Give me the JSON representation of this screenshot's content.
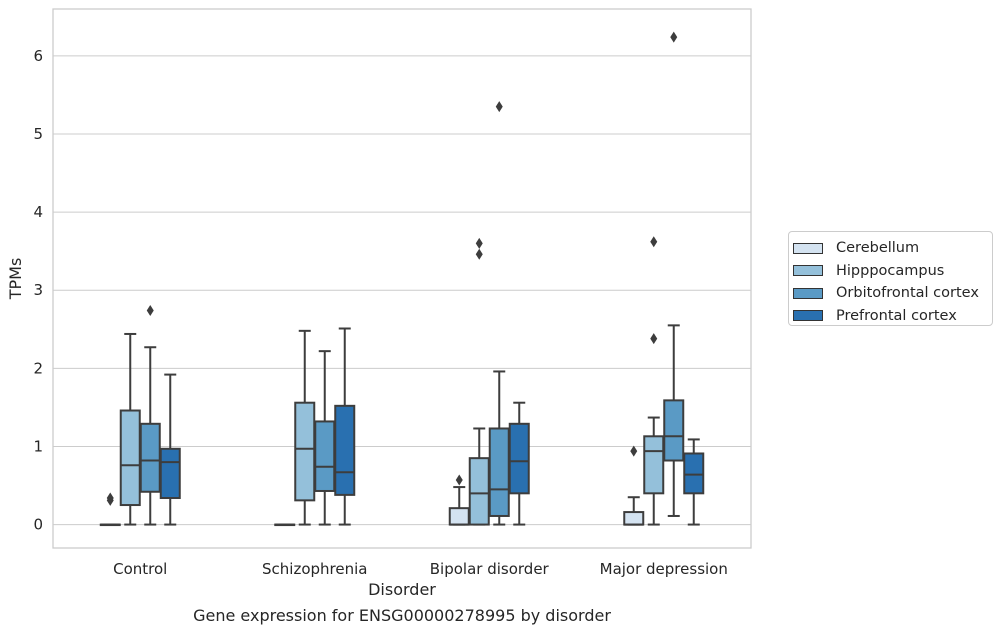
{
  "chart_data": {
    "type": "box",
    "title": "Gene expression for ENSG00000278995 by disorder",
    "xlabel": "Disorder",
    "ylabel": "TPMs",
    "ylim": [
      -0.3,
      6.6
    ],
    "yticks": [
      0,
      1,
      2,
      3,
      4,
      5,
      6
    ],
    "grid": true,
    "legend_position": "right",
    "categories": [
      "Control",
      "Schizophrenia",
      "Bipolar disorder",
      "Major depression"
    ],
    "series": [
      {
        "name": "Cerebellum",
        "color": "#d4e3f1",
        "boxes": [
          {
            "whisker_low": 0,
            "q1": 0,
            "median": 0,
            "q3": 0,
            "whisker_high": 0,
            "outliers": [
              0.31,
              0.34
            ]
          },
          {
            "whisker_low": 0,
            "q1": 0,
            "median": 0,
            "q3": 0,
            "whisker_high": 0,
            "outliers": []
          },
          {
            "whisker_low": 0,
            "q1": 0,
            "median": 0,
            "q3": 0.21,
            "whisker_high": 0.48,
            "outliers": [
              0.57
            ]
          },
          {
            "whisker_low": 0,
            "q1": 0,
            "median": 0,
            "q3": 0.16,
            "whisker_high": 0.35,
            "outliers": [
              0.94
            ]
          }
        ]
      },
      {
        "name": "Hipppocampus",
        "color": "#94c0da",
        "boxes": [
          {
            "whisker_low": 0,
            "q1": 0.25,
            "median": 0.76,
            "q3": 1.46,
            "whisker_high": 2.44,
            "outliers": []
          },
          {
            "whisker_low": 0,
            "q1": 0.31,
            "median": 0.97,
            "q3": 1.56,
            "whisker_high": 2.48,
            "outliers": []
          },
          {
            "whisker_low": 0,
            "q1": 0,
            "median": 0.4,
            "q3": 0.85,
            "whisker_high": 1.23,
            "outliers": [
              3.46,
              3.6
            ]
          },
          {
            "whisker_low": 0,
            "q1": 0.4,
            "median": 0.94,
            "q3": 1.13,
            "whisker_high": 1.37,
            "outliers": [
              2.38,
              3.62
            ]
          }
        ]
      },
      {
        "name": "Orbitofrontal cortex",
        "color": "#5a9ac5",
        "boxes": [
          {
            "whisker_low": 0,
            "q1": 0.42,
            "median": 0.82,
            "q3": 1.29,
            "whisker_high": 2.27,
            "outliers": [
              2.74
            ]
          },
          {
            "whisker_low": 0,
            "q1": 0.43,
            "median": 0.74,
            "q3": 1.32,
            "whisker_high": 2.22,
            "outliers": []
          },
          {
            "whisker_low": 0,
            "q1": 0.11,
            "median": 0.45,
            "q3": 1.23,
            "whisker_high": 1.96,
            "outliers": [
              5.35
            ]
          },
          {
            "whisker_low": 0.11,
            "q1": 0.82,
            "median": 1.13,
            "q3": 1.59,
            "whisker_high": 2.55,
            "outliers": [
              6.24
            ]
          }
        ]
      },
      {
        "name": "Prefrontal cortex",
        "color": "#2970b0",
        "boxes": [
          {
            "whisker_low": 0,
            "q1": 0.34,
            "median": 0.8,
            "q3": 0.97,
            "whisker_high": 1.92,
            "outliers": []
          },
          {
            "whisker_low": 0,
            "q1": 0.38,
            "median": 0.67,
            "q3": 1.52,
            "whisker_high": 2.51,
            "outliers": []
          },
          {
            "whisker_low": 0,
            "q1": 0.4,
            "median": 0.81,
            "q3": 1.29,
            "whisker_high": 1.56,
            "outliers": []
          },
          {
            "whisker_low": 0,
            "q1": 0.4,
            "median": 0.64,
            "q3": 0.91,
            "whisker_high": 1.09,
            "outliers": []
          }
        ]
      }
    ]
  }
}
